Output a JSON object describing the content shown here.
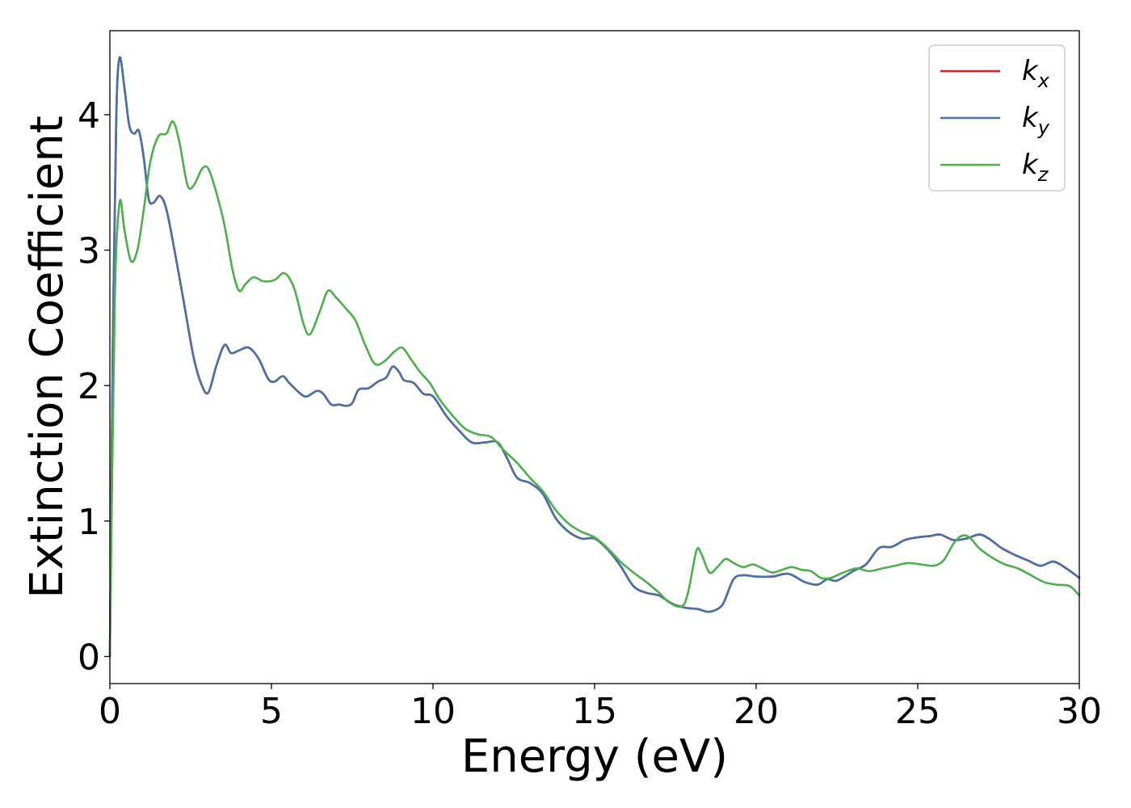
{
  "chart_data": {
    "type": "line",
    "title": "",
    "xlabel": "Energy (eV)",
    "ylabel": "Extinction Coefficient",
    "xlim": [
      0,
      30
    ],
    "ylim": [
      -0.2,
      4.62
    ],
    "xticks": [
      0,
      5,
      10,
      15,
      20,
      25,
      30
    ],
    "yticks": [
      0,
      1,
      2,
      3,
      4
    ],
    "legend_position": "top-right",
    "grid": false,
    "series": [
      {
        "name": "k",
        "subscript": "x",
        "color": "#e41a1c",
        "points": [
          [
            0,
            0
          ],
          [
            0.1,
            2.5
          ],
          [
            0.2,
            4.0
          ],
          [
            0.3,
            4.42
          ],
          [
            0.45,
            4.2
          ],
          [
            0.6,
            3.92
          ],
          [
            0.75,
            3.86
          ],
          [
            0.9,
            3.88
          ],
          [
            1.05,
            3.68
          ],
          [
            1.2,
            3.38
          ],
          [
            1.35,
            3.35
          ],
          [
            1.55,
            3.4
          ],
          [
            1.75,
            3.3
          ],
          [
            2.0,
            3.0
          ],
          [
            2.3,
            2.6
          ],
          [
            2.6,
            2.2
          ],
          [
            2.85,
            2.0
          ],
          [
            3.05,
            1.95
          ],
          [
            3.3,
            2.15
          ],
          [
            3.55,
            2.3
          ],
          [
            3.75,
            2.24
          ],
          [
            4.0,
            2.26
          ],
          [
            4.3,
            2.28
          ],
          [
            4.6,
            2.2
          ],
          [
            4.9,
            2.05
          ],
          [
            5.1,
            2.03
          ],
          [
            5.35,
            2.07
          ],
          [
            5.55,
            2.02
          ],
          [
            5.9,
            1.94
          ],
          [
            6.1,
            1.92
          ],
          [
            6.4,
            1.96
          ],
          [
            6.6,
            1.94
          ],
          [
            6.85,
            1.86
          ],
          [
            7.1,
            1.86
          ],
          [
            7.3,
            1.85
          ],
          [
            7.5,
            1.87
          ],
          [
            7.7,
            1.97
          ],
          [
            8.0,
            1.98
          ],
          [
            8.3,
            2.03
          ],
          [
            8.55,
            2.06
          ],
          [
            8.75,
            2.14
          ],
          [
            8.95,
            2.1
          ],
          [
            9.1,
            2.04
          ],
          [
            9.4,
            2.02
          ],
          [
            9.7,
            1.94
          ],
          [
            10.0,
            1.92
          ],
          [
            10.4,
            1.78
          ],
          [
            10.8,
            1.67
          ],
          [
            11.2,
            1.58
          ],
          [
            11.6,
            1.58
          ],
          [
            12.0,
            1.58
          ],
          [
            12.3,
            1.46
          ],
          [
            12.6,
            1.32
          ],
          [
            13.0,
            1.28
          ],
          [
            13.4,
            1.2
          ],
          [
            13.8,
            1.02
          ],
          [
            14.2,
            0.92
          ],
          [
            14.6,
            0.87
          ],
          [
            15.0,
            0.87
          ],
          [
            15.4,
            0.79
          ],
          [
            15.8,
            0.67
          ],
          [
            16.2,
            0.52
          ],
          [
            16.6,
            0.47
          ],
          [
            17.0,
            0.45
          ],
          [
            17.4,
            0.39
          ],
          [
            17.8,
            0.36
          ],
          [
            18.2,
            0.35
          ],
          [
            18.5,
            0.33
          ],
          [
            18.8,
            0.35
          ],
          [
            19.0,
            0.4
          ],
          [
            19.3,
            0.57
          ],
          [
            19.6,
            0.6
          ],
          [
            20.0,
            0.59
          ],
          [
            20.5,
            0.59
          ],
          [
            21.0,
            0.61
          ],
          [
            21.5,
            0.55
          ],
          [
            21.9,
            0.53
          ],
          [
            22.2,
            0.57
          ],
          [
            22.5,
            0.56
          ],
          [
            23.0,
            0.63
          ],
          [
            23.4,
            0.68
          ],
          [
            23.8,
            0.8
          ],
          [
            24.2,
            0.81
          ],
          [
            24.6,
            0.86
          ],
          [
            25.0,
            0.88
          ],
          [
            25.4,
            0.89
          ],
          [
            25.7,
            0.9
          ],
          [
            26.1,
            0.86
          ],
          [
            26.5,
            0.87
          ],
          [
            26.9,
            0.9
          ],
          [
            27.2,
            0.87
          ],
          [
            27.6,
            0.8
          ],
          [
            28.0,
            0.75
          ],
          [
            28.4,
            0.71
          ],
          [
            28.8,
            0.67
          ],
          [
            29.2,
            0.7
          ],
          [
            29.6,
            0.65
          ],
          [
            30.0,
            0.58
          ]
        ]
      },
      {
        "name": "k",
        "subscript": "y",
        "color": "#4472a9",
        "points": [
          [
            0,
            0
          ],
          [
            0.1,
            2.5
          ],
          [
            0.2,
            4.0
          ],
          [
            0.3,
            4.42
          ],
          [
            0.45,
            4.2
          ],
          [
            0.6,
            3.92
          ],
          [
            0.75,
            3.86
          ],
          [
            0.9,
            3.88
          ],
          [
            1.05,
            3.68
          ],
          [
            1.2,
            3.38
          ],
          [
            1.35,
            3.35
          ],
          [
            1.55,
            3.4
          ],
          [
            1.75,
            3.3
          ],
          [
            2.0,
            3.0
          ],
          [
            2.3,
            2.6
          ],
          [
            2.6,
            2.2
          ],
          [
            2.85,
            2.0
          ],
          [
            3.05,
            1.95
          ],
          [
            3.3,
            2.15
          ],
          [
            3.55,
            2.3
          ],
          [
            3.75,
            2.24
          ],
          [
            4.0,
            2.26
          ],
          [
            4.3,
            2.28
          ],
          [
            4.6,
            2.2
          ],
          [
            4.9,
            2.05
          ],
          [
            5.1,
            2.03
          ],
          [
            5.35,
            2.07
          ],
          [
            5.55,
            2.02
          ],
          [
            5.9,
            1.94
          ],
          [
            6.1,
            1.92
          ],
          [
            6.4,
            1.96
          ],
          [
            6.6,
            1.94
          ],
          [
            6.85,
            1.86
          ],
          [
            7.1,
            1.86
          ],
          [
            7.3,
            1.85
          ],
          [
            7.5,
            1.87
          ],
          [
            7.7,
            1.97
          ],
          [
            8.0,
            1.98
          ],
          [
            8.3,
            2.03
          ],
          [
            8.55,
            2.06
          ],
          [
            8.75,
            2.14
          ],
          [
            8.95,
            2.1
          ],
          [
            9.1,
            2.04
          ],
          [
            9.4,
            2.02
          ],
          [
            9.7,
            1.94
          ],
          [
            10.0,
            1.92
          ],
          [
            10.4,
            1.78
          ],
          [
            10.8,
            1.67
          ],
          [
            11.2,
            1.58
          ],
          [
            11.6,
            1.58
          ],
          [
            12.0,
            1.58
          ],
          [
            12.3,
            1.46
          ],
          [
            12.6,
            1.32
          ],
          [
            13.0,
            1.28
          ],
          [
            13.4,
            1.2
          ],
          [
            13.8,
            1.02
          ],
          [
            14.2,
            0.92
          ],
          [
            14.6,
            0.87
          ],
          [
            15.0,
            0.87
          ],
          [
            15.4,
            0.79
          ],
          [
            15.8,
            0.67
          ],
          [
            16.2,
            0.52
          ],
          [
            16.6,
            0.47
          ],
          [
            17.0,
            0.45
          ],
          [
            17.4,
            0.39
          ],
          [
            17.8,
            0.36
          ],
          [
            18.2,
            0.35
          ],
          [
            18.5,
            0.33
          ],
          [
            18.8,
            0.35
          ],
          [
            19.0,
            0.4
          ],
          [
            19.3,
            0.57
          ],
          [
            19.6,
            0.6
          ],
          [
            20.0,
            0.59
          ],
          [
            20.5,
            0.59
          ],
          [
            21.0,
            0.61
          ],
          [
            21.5,
            0.55
          ],
          [
            21.9,
            0.53
          ],
          [
            22.2,
            0.57
          ],
          [
            22.5,
            0.56
          ],
          [
            23.0,
            0.63
          ],
          [
            23.4,
            0.68
          ],
          [
            23.8,
            0.8
          ],
          [
            24.2,
            0.81
          ],
          [
            24.6,
            0.86
          ],
          [
            25.0,
            0.88
          ],
          [
            25.4,
            0.89
          ],
          [
            25.7,
            0.9
          ],
          [
            26.1,
            0.86
          ],
          [
            26.5,
            0.87
          ],
          [
            26.9,
            0.9
          ],
          [
            27.2,
            0.87
          ],
          [
            27.6,
            0.8
          ],
          [
            28.0,
            0.75
          ],
          [
            28.4,
            0.71
          ],
          [
            28.8,
            0.67
          ],
          [
            29.2,
            0.7
          ],
          [
            29.6,
            0.65
          ],
          [
            30.0,
            0.58
          ]
        ]
      },
      {
        "name": "k",
        "subscript": "z",
        "color": "#4daf4a",
        "points": [
          [
            0,
            0
          ],
          [
            0.15,
            2.6
          ],
          [
            0.3,
            3.35
          ],
          [
            0.45,
            3.15
          ],
          [
            0.65,
            2.92
          ],
          [
            0.85,
            3.0
          ],
          [
            1.05,
            3.3
          ],
          [
            1.25,
            3.65
          ],
          [
            1.5,
            3.84
          ],
          [
            1.75,
            3.86
          ],
          [
            1.95,
            3.95
          ],
          [
            2.15,
            3.8
          ],
          [
            2.4,
            3.48
          ],
          [
            2.6,
            3.48
          ],
          [
            2.85,
            3.6
          ],
          [
            3.05,
            3.6
          ],
          [
            3.3,
            3.42
          ],
          [
            3.55,
            3.18
          ],
          [
            3.8,
            2.85
          ],
          [
            4.0,
            2.7
          ],
          [
            4.2,
            2.75
          ],
          [
            4.45,
            2.8
          ],
          [
            4.75,
            2.77
          ],
          [
            5.1,
            2.78
          ],
          [
            5.4,
            2.83
          ],
          [
            5.7,
            2.72
          ],
          [
            6.0,
            2.45
          ],
          [
            6.2,
            2.38
          ],
          [
            6.5,
            2.55
          ],
          [
            6.75,
            2.7
          ],
          [
            7.0,
            2.65
          ],
          [
            7.3,
            2.57
          ],
          [
            7.6,
            2.48
          ],
          [
            7.9,
            2.3
          ],
          [
            8.2,
            2.16
          ],
          [
            8.5,
            2.18
          ],
          [
            8.8,
            2.25
          ],
          [
            9.05,
            2.28
          ],
          [
            9.3,
            2.2
          ],
          [
            9.6,
            2.1
          ],
          [
            9.9,
            2.02
          ],
          [
            10.2,
            1.9
          ],
          [
            10.6,
            1.78
          ],
          [
            11.0,
            1.68
          ],
          [
            11.4,
            1.64
          ],
          [
            11.8,
            1.62
          ],
          [
            12.2,
            1.52
          ],
          [
            12.6,
            1.43
          ],
          [
            13.0,
            1.32
          ],
          [
            13.4,
            1.22
          ],
          [
            13.8,
            1.08
          ],
          [
            14.2,
            0.98
          ],
          [
            14.6,
            0.92
          ],
          [
            15.0,
            0.88
          ],
          [
            15.4,
            0.8
          ],
          [
            15.8,
            0.7
          ],
          [
            16.2,
            0.62
          ],
          [
            16.6,
            0.55
          ],
          [
            17.0,
            0.47
          ],
          [
            17.3,
            0.4
          ],
          [
            17.7,
            0.37
          ],
          [
            17.9,
            0.48
          ],
          [
            18.15,
            0.78
          ],
          [
            18.3,
            0.76
          ],
          [
            18.55,
            0.62
          ],
          [
            18.8,
            0.66
          ],
          [
            19.05,
            0.72
          ],
          [
            19.3,
            0.69
          ],
          [
            19.6,
            0.66
          ],
          [
            19.9,
            0.68
          ],
          [
            20.2,
            0.65
          ],
          [
            20.5,
            0.62
          ],
          [
            20.8,
            0.64
          ],
          [
            21.1,
            0.66
          ],
          [
            21.4,
            0.64
          ],
          [
            21.7,
            0.63
          ],
          [
            22.0,
            0.58
          ],
          [
            22.3,
            0.58
          ],
          [
            22.7,
            0.62
          ],
          [
            23.1,
            0.65
          ],
          [
            23.5,
            0.63
          ],
          [
            23.9,
            0.65
          ],
          [
            24.3,
            0.67
          ],
          [
            24.7,
            0.69
          ],
          [
            25.1,
            0.68
          ],
          [
            25.5,
            0.67
          ],
          [
            25.8,
            0.71
          ],
          [
            26.1,
            0.83
          ],
          [
            26.35,
            0.89
          ],
          [
            26.6,
            0.88
          ],
          [
            26.9,
            0.8
          ],
          [
            27.3,
            0.73
          ],
          [
            27.7,
            0.68
          ],
          [
            28.1,
            0.65
          ],
          [
            28.5,
            0.6
          ],
          [
            28.9,
            0.55
          ],
          [
            29.3,
            0.53
          ],
          [
            29.7,
            0.52
          ],
          [
            30.0,
            0.45
          ]
        ]
      }
    ]
  }
}
